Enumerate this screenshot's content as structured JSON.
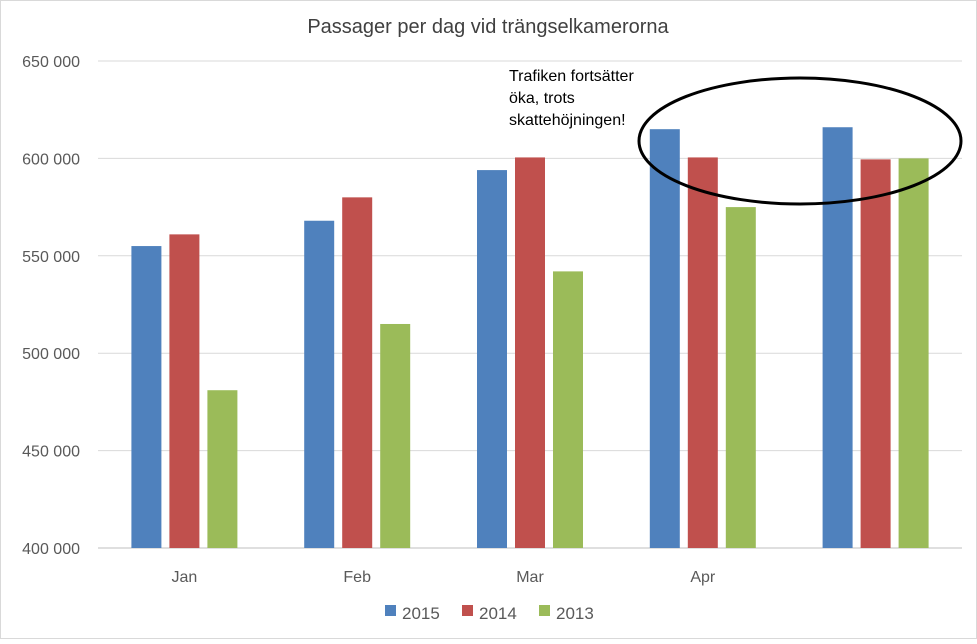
{
  "chart_data": {
    "type": "bar",
    "title": "Passager per dag vid trängselkamerorna",
    "categories": [
      "Jan",
      "Feb",
      "Mar",
      "Apr",
      ""
    ],
    "series": [
      {
        "name": "2015",
        "color": "#4F81BD",
        "values": [
          555000,
          568000,
          594000,
          615000,
          616000
        ]
      },
      {
        "name": "2014",
        "color": "#C0504D",
        "values": [
          561000,
          580000,
          600500,
          600500,
          599500
        ]
      },
      {
        "name": "2013",
        "color": "#9BBB59",
        "values": [
          481000,
          515000,
          542000,
          575000,
          600000
        ]
      }
    ],
    "ylim": [
      400000,
      650000
    ],
    "yticks": [
      400000,
      450000,
      500000,
      550000,
      600000,
      650000
    ],
    "ytick_labels": [
      "400 000",
      "450 000",
      "500 000",
      "550 000",
      "600 000",
      "650 000"
    ],
    "grid": true,
    "legend_position": "bottom",
    "annotation": {
      "lines": [
        "Trafiken fortsätter",
        "öka,  trots",
        "skattehöjningen!"
      ],
      "shape": "ellipse",
      "highlights_categories": [
        "Apr",
        ""
      ]
    }
  }
}
